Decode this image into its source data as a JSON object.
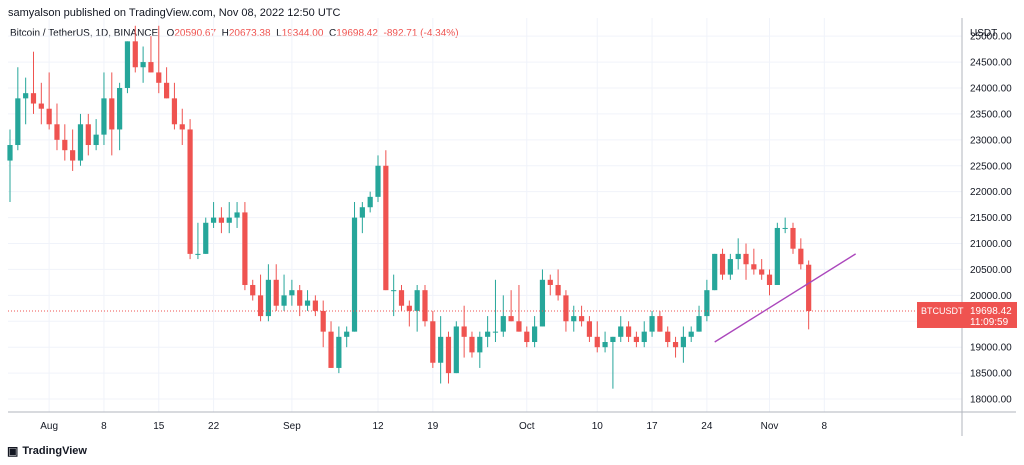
{
  "publisher_line": "samyalson published on TradingView.com, Nov 08, 2022 12:50 UTC",
  "legend": {
    "symbol": "Bitcoin / TetherUS, 1D, BINANCE",
    "o_label": "O",
    "o_value": "20590.67",
    "h_label": "H",
    "h_value": "20673.38",
    "l_label": "L",
    "l_value": "19344.00",
    "c_label": "C",
    "c_value": "19698.42",
    "change": "-892.71 (-4.34%)"
  },
  "price_tag": {
    "symbol": "BTCUSDT",
    "price": "19698.42",
    "countdown": "11:09:59"
  },
  "logo_text": "TradingView",
  "colors": {
    "up": "#26a69a",
    "down": "#ef5350",
    "trendline": "#ab47bc",
    "grid": "#f0f3fa",
    "axis_text": "#131722"
  },
  "chart_data": {
    "type": "candlestick",
    "ylabel": "USDT",
    "y_ticks": [
      18000,
      18500,
      19000,
      19500,
      20000,
      20500,
      21000,
      21500,
      22000,
      22500,
      23000,
      23500,
      24000,
      24500,
      25000
    ],
    "y_tick_labels": [
      "18000.00",
      "18500.00",
      "19000.00",
      "19500.00",
      "20000.00",
      "20500.00",
      "21000.00",
      "21500.00",
      "22000.00",
      "22500.00",
      "23000.00",
      "23500.00",
      "24000.00",
      "24500.00",
      "25000.00"
    ],
    "ylim": [
      17750,
      25350
    ],
    "x_tick_labels": [
      {
        "label": "Aug",
        "index": 5
      },
      {
        "label": "8",
        "index": 12
      },
      {
        "label": "15",
        "index": 19
      },
      {
        "label": "22",
        "index": 26
      },
      {
        "label": "Sep",
        "index": 36
      },
      {
        "label": "12",
        "index": 47
      },
      {
        "label": "19",
        "index": 54
      },
      {
        "label": "Oct",
        "index": 66
      },
      {
        "label": "10",
        "index": 75
      },
      {
        "label": "17",
        "index": 82
      },
      {
        "label": "24",
        "index": 89
      },
      {
        "label": "Nov",
        "index": 97
      },
      {
        "label": "8",
        "index": 104
      }
    ],
    "ohlc": [
      [
        22600,
        23200,
        21800,
        22900
      ],
      [
        22900,
        24400,
        22800,
        23800
      ],
      [
        23800,
        24200,
        23300,
        23900
      ],
      [
        23900,
        24700,
        23500,
        23700
      ],
      [
        23700,
        24100,
        23300,
        23600
      ],
      [
        23600,
        24300,
        23200,
        23300
      ],
      [
        23300,
        23700,
        22800,
        23000
      ],
      [
        23000,
        23300,
        22600,
        22800
      ],
      [
        22800,
        23200,
        22400,
        22600
      ],
      [
        22600,
        23500,
        22500,
        23300
      ],
      [
        23300,
        23500,
        22700,
        22900
      ],
      [
        22900,
        23400,
        22800,
        23100
      ],
      [
        23100,
        24300,
        22900,
        23800
      ],
      [
        23800,
        24300,
        22700,
        23200
      ],
      [
        23200,
        24100,
        22800,
        24000
      ],
      [
        24000,
        24900,
        23900,
        24900
      ],
      [
        24900,
        25200,
        24300,
        24400
      ],
      [
        24400,
        24800,
        24100,
        24500
      ],
      [
        24500,
        25000,
        24300,
        24300
      ],
      [
        24300,
        25200,
        23900,
        24100
      ],
      [
        24100,
        24400,
        23800,
        23800
      ],
      [
        23800,
        24100,
        23200,
        23300
      ],
      [
        23300,
        23600,
        22900,
        23200
      ],
      [
        23200,
        23400,
        20700,
        20800
      ],
      [
        20800,
        21400,
        20700,
        20800
      ],
      [
        20800,
        21500,
        20800,
        21400
      ],
      [
        21400,
        21800,
        21300,
        21500
      ],
      [
        21500,
        21700,
        21200,
        21400
      ],
      [
        21400,
        21800,
        21200,
        21500
      ],
      [
        21500,
        21800,
        21300,
        21600
      ],
      [
        21600,
        21800,
        20100,
        20200
      ],
      [
        20200,
        20300,
        19900,
        20000
      ],
      [
        20000,
        20400,
        19500,
        19600
      ],
      [
        19600,
        20600,
        19500,
        20300
      ],
      [
        20300,
        20600,
        19700,
        19800
      ],
      [
        19800,
        20400,
        19700,
        20000
      ],
      [
        20000,
        20300,
        19800,
        20100
      ],
      [
        20100,
        20200,
        19600,
        19800
      ],
      [
        19800,
        20100,
        19700,
        19900
      ],
      [
        19900,
        20000,
        19600,
        19700
      ],
      [
        19700,
        19900,
        19000,
        19300
      ],
      [
        19300,
        19500,
        18600,
        18600
      ],
      [
        18600,
        19400,
        18500,
        19200
      ],
      [
        19200,
        19400,
        19000,
        19300
      ],
      [
        19300,
        21800,
        19300,
        21500
      ],
      [
        21500,
        21800,
        21200,
        21700
      ],
      [
        21700,
        22000,
        21600,
        21900
      ],
      [
        21900,
        22700,
        21800,
        22500
      ],
      [
        22500,
        22800,
        20100,
        20100
      ],
      [
        20100,
        20400,
        19600,
        20100
      ],
      [
        20100,
        20200,
        19700,
        19800
      ],
      [
        19800,
        19900,
        19400,
        19700
      ],
      [
        19700,
        20200,
        19300,
        20100
      ],
      [
        20100,
        20200,
        19400,
        19500
      ],
      [
        19500,
        19700,
        18600,
        18700
      ],
      [
        18700,
        19600,
        18300,
        19200
      ],
      [
        19200,
        19300,
        18300,
        18500
      ],
      [
        18500,
        19500,
        18500,
        19400
      ],
      [
        19400,
        19800,
        18800,
        19200
      ],
      [
        19200,
        19300,
        18800,
        18900
      ],
      [
        18900,
        19300,
        18600,
        19200
      ],
      [
        19200,
        19600,
        19000,
        19300
      ],
      [
        19300,
        20300,
        19100,
        19300
      ],
      [
        19300,
        20000,
        19200,
        19600
      ],
      [
        19600,
        20100,
        19500,
        19500
      ],
      [
        19500,
        20200,
        19300,
        19300
      ],
      [
        19300,
        19400,
        19000,
        19100
      ],
      [
        19100,
        19600,
        19000,
        19400
      ],
      [
        19400,
        20500,
        19400,
        20300
      ],
      [
        20300,
        20400,
        20000,
        20200
      ],
      [
        20200,
        20500,
        19900,
        20000
      ],
      [
        20000,
        20100,
        19300,
        19500
      ],
      [
        19500,
        19800,
        19300,
        19600
      ],
      [
        19600,
        19800,
        19400,
        19500
      ],
      [
        19500,
        19600,
        19100,
        19200
      ],
      [
        19200,
        19500,
        18900,
        19000
      ],
      [
        19000,
        19300,
        18900,
        19100
      ],
      [
        19100,
        19200,
        18200,
        19200
      ],
      [
        19200,
        19600,
        19100,
        19400
      ],
      [
        19400,
        19500,
        19100,
        19200
      ],
      [
        19200,
        19300,
        19000,
        19100
      ],
      [
        19100,
        19500,
        19000,
        19300
      ],
      [
        19300,
        19700,
        19200,
        19600
      ],
      [
        19600,
        19700,
        19300,
        19300
      ],
      [
        19300,
        19400,
        19000,
        19100
      ],
      [
        19100,
        19200,
        18800,
        19000
      ],
      [
        19000,
        19400,
        18700,
        19200
      ],
      [
        19200,
        19400,
        19100,
        19300
      ],
      [
        19300,
        19800,
        19300,
        19600
      ],
      [
        19600,
        20300,
        19500,
        20100
      ],
      [
        20100,
        20800,
        20100,
        20800
      ],
      [
        20800,
        20900,
        20300,
        20400
      ],
      [
        20400,
        20800,
        20300,
        20700
      ],
      [
        20700,
        21100,
        20500,
        20800
      ],
      [
        20800,
        21000,
        20300,
        20600
      ],
      [
        20600,
        20900,
        20400,
        20500
      ],
      [
        20500,
        20700,
        20300,
        20400
      ],
      [
        20400,
        20500,
        20000,
        20200
      ],
      [
        20200,
        21400,
        20200,
        21300
      ],
      [
        21300,
        21500,
        21200,
        21300
      ],
      [
        21300,
        21400,
        20800,
        20900
      ],
      [
        20900,
        21100,
        20500,
        20600
      ],
      [
        20590.67,
        20673.38,
        19344.0,
        19698.42
      ]
    ],
    "trendline": {
      "from": {
        "index": 90,
        "price": 19100
      },
      "to": {
        "index": 108,
        "price": 20800
      }
    }
  }
}
